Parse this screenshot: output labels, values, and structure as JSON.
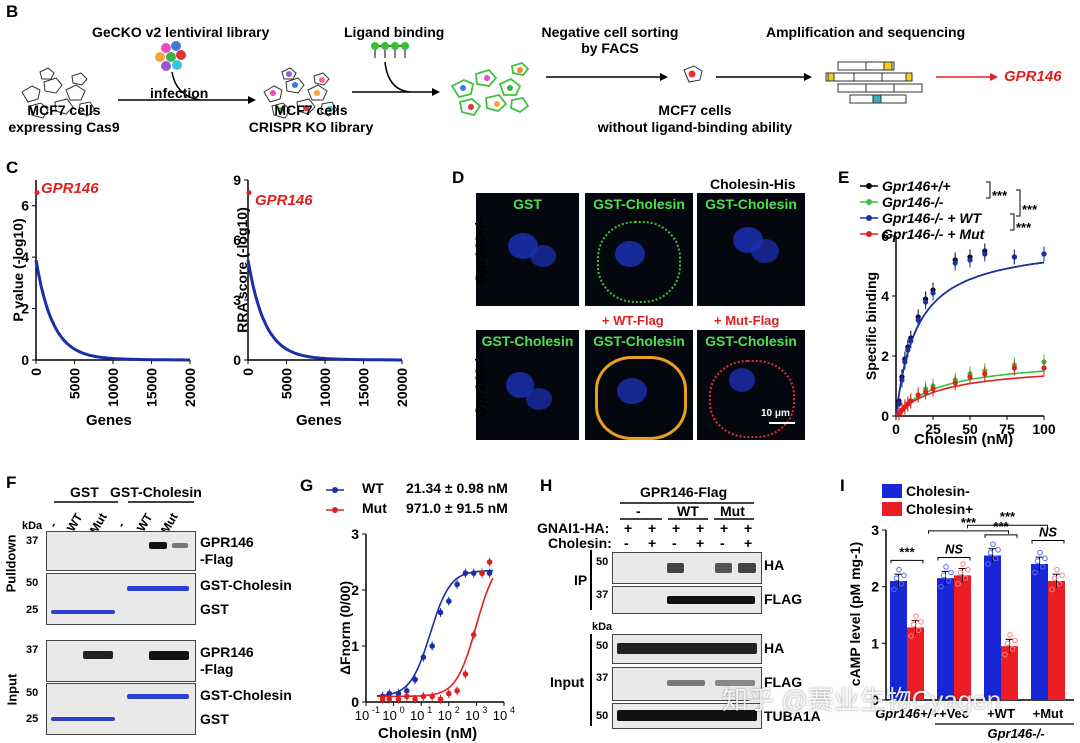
{
  "panels": {
    "B": {
      "label": "B",
      "steps": [
        "GeCKO v2 lentiviral library",
        "Ligand binding",
        "Negative cell sorting",
        "by FACS",
        "Amplification and sequencing"
      ],
      "infection": "infection",
      "cells1": [
        "MCF7 cells",
        "expressing Cas9"
      ],
      "cells2": [
        "MCF7 cells",
        "CRISPR KO library"
      ],
      "cells3": [
        "MCF7 cells",
        "without ligand-binding ability"
      ],
      "result": "GPR146"
    },
    "C": {
      "label": "C",
      "gene": "GPR146",
      "left_ylabel": "P value (-log10)",
      "right_ylabel": "RRA score (-log10)",
      "xlabel": "Genes"
    },
    "D": {
      "label": "D",
      "row1": [
        "GST",
        "GST-Cholesin",
        "GST-Cholesin"
      ],
      "row1_extra": "Cholesin-His",
      "row2": [
        "GST-Cholesin",
        "GST-Cholesin",
        "GST-Cholesin"
      ],
      "row2_extra": [
        "+ WT-Flag",
        "+ Mut-Flag"
      ],
      "geno1": "Gpr146+/+",
      "geno2": "Gpr146-/-",
      "scale": "10 μm"
    },
    "E": {
      "label": "E",
      "legend": [
        "Gpr146+/+",
        "Gpr146-/-",
        "Gpr146-/- + WT",
        "Gpr146-/- + Mut"
      ],
      "sig": [
        "***",
        "***",
        "***"
      ],
      "ylabel": "Specific binding",
      "xlabel": "Cholesin (nM)"
    },
    "F": {
      "label": "F",
      "col_groups": [
        "GST",
        "GST-Cholesin"
      ],
      "lanes": [
        "-",
        "WT",
        "Mut",
        "-",
        "WT",
        "Mut"
      ],
      "kda": "kDa",
      "pulldown": "Pulldown",
      "input": "Input",
      "markers": [
        "37",
        "50",
        "25",
        "37",
        "50",
        "25"
      ],
      "bands": [
        "GPR146",
        "-Flag",
        "GST-Cholesin",
        "GST",
        "GPR146",
        "-Flag",
        "GST-Cholesin",
        "GST"
      ]
    },
    "G": {
      "label": "G",
      "legend": [
        {
          "name": "WT",
          "value": "21.34 ± 0.98 nM"
        },
        {
          "name": "Mut",
          "value": "971.0 ± 91.5 nM"
        }
      ],
      "ylabel": "ΔFnorm (0/00)",
      "xlabel": "Cholesin (nM)"
    },
    "H": {
      "label": "H",
      "top": "GPR146-Flag",
      "groups": [
        "-",
        "WT",
        "Mut"
      ],
      "row1_label": "GNAI1-HA:",
      "row2_label": "Cholesin:",
      "row1": [
        "+",
        "+",
        "+",
        "+",
        "+",
        "+"
      ],
      "row2": [
        "-",
        "+",
        "-",
        "+",
        "-",
        "+"
      ],
      "ip": "IP",
      "input": "Input",
      "kda": "kDa",
      "markers": [
        "50",
        "37",
        "50",
        "37",
        "50"
      ],
      "bands": [
        "HA",
        "FLAG",
        "HA",
        "FLAG",
        "TUBA1A"
      ]
    },
    "I": {
      "label": "I",
      "legend": [
        "Cholesin-",
        "Cholesin+"
      ],
      "ylabel": "cAMP level (pM mg-1)",
      "groups": [
        "Gpr146+/+",
        "+Vec",
        "+WT",
        "+Mut"
      ],
      "geno": "Gpr146-/-",
      "sig": [
        "***",
        "NS",
        "***",
        "***",
        "NS",
        "***"
      ]
    }
  },
  "watermark": "知乎 @赛业生物Cyagen",
  "chart_data": [
    {
      "type": "line",
      "panel": "E",
      "xlabel": "Cholesin (nM)",
      "ylabel": "Specific binding",
      "xlim": [
        0,
        100
      ],
      "ylim": [
        0,
        6
      ],
      "series": [
        {
          "name": "Gpr146+/+",
          "color": "#000000",
          "x": [
            2,
            4,
            6,
            8,
            10,
            15,
            20,
            25,
            40,
            50,
            60,
            80,
            100
          ],
          "y": [
            0.5,
            1.3,
            1.9,
            2.3,
            2.6,
            3.3,
            3.9,
            4.2,
            5.2,
            5.3,
            5.5,
            5.3,
            5.4
          ]
        },
        {
          "name": "Gpr146-/-",
          "color": "#38c238",
          "x": [
            2,
            4,
            6,
            8,
            10,
            15,
            20,
            25,
            40,
            50,
            60,
            80,
            100
          ],
          "y": [
            0.1,
            0.2,
            0.3,
            0.4,
            0.5,
            0.7,
            0.9,
            1.0,
            1.2,
            1.4,
            1.5,
            1.7,
            1.8
          ]
        },
        {
          "name": "Gpr146-/- + WT",
          "color": "#1a2ea8",
          "x": [
            2,
            4,
            6,
            8,
            10,
            15,
            20,
            25,
            40,
            50,
            60,
            80,
            100
          ],
          "y": [
            0.4,
            1.2,
            1.8,
            2.2,
            2.5,
            3.2,
            3.8,
            4.1,
            5.1,
            5.2,
            5.4,
            5.3,
            5.4
          ]
        },
        {
          "name": "Gpr146-/- + Mut",
          "color": "#e02020",
          "x": [
            2,
            4,
            6,
            8,
            10,
            15,
            20,
            25,
            40,
            50,
            60,
            80,
            100
          ],
          "y": [
            0.1,
            0.2,
            0.3,
            0.4,
            0.5,
            0.7,
            0.8,
            0.9,
            1.1,
            1.3,
            1.4,
            1.6,
            1.6
          ]
        }
      ]
    },
    {
      "type": "scatter",
      "panel": "G",
      "xlabel": "Cholesin (nM)",
      "ylabel": "ΔFnorm (0/00)",
      "xscale": "log",
      "xlim": [
        0.1,
        10000
      ],
      "ylim": [
        0,
        3
      ],
      "series": [
        {
          "name": "WT",
          "color": "#1a2ea8",
          "x": [
            0.4,
            0.7,
            1.5,
            3,
            6,
            12,
            25,
            50,
            100,
            200,
            400,
            800,
            1600,
            3000
          ],
          "y": [
            0.1,
            0.15,
            0.15,
            0.2,
            0.4,
            0.8,
            1.0,
            1.6,
            1.8,
            2.1,
            2.3,
            2.3,
            2.3,
            2.3
          ]
        },
        {
          "name": "Mut",
          "color": "#e02020",
          "x": [
            0.4,
            0.7,
            1.5,
            3,
            6,
            12,
            25,
            50,
            100,
            200,
            400,
            800,
            1600,
            3000
          ],
          "y": [
            0.05,
            0.05,
            0.05,
            0.1,
            0.05,
            0.1,
            0.1,
            0.05,
            0.15,
            0.2,
            0.5,
            1.2,
            2.3,
            2.5
          ]
        }
      ]
    },
    {
      "type": "bar",
      "panel": "I",
      "ylabel": "cAMP level (pM mg-1)",
      "ylim": [
        0,
        3
      ],
      "categories": [
        "Gpr146+/+",
        "+Vec",
        "+WT",
        "+Mut"
      ],
      "series": [
        {
          "name": "Cholesin-",
          "color": "#1726d6",
          "values": [
            2.1,
            2.15,
            2.55,
            2.4
          ]
        },
        {
          "name": "Cholesin+",
          "color": "#ec1c24",
          "values": [
            1.28,
            2.2,
            0.95,
            2.1
          ]
        }
      ]
    },
    {
      "type": "line",
      "panel": "C",
      "series": [
        {
          "name": "",
          "xlabel": "Genes",
          "ylabel": "P value (-log10)",
          "xlim": [
            0,
            20000
          ],
          "ylim": [
            0,
            7
          ]
        },
        {
          "name": "",
          "xlabel": "Genes",
          "ylabel": "RRA score (-log10)",
          "xlim": [
            0,
            20000
          ],
          "ylim": [
            0,
            9
          ]
        }
      ]
    }
  ]
}
